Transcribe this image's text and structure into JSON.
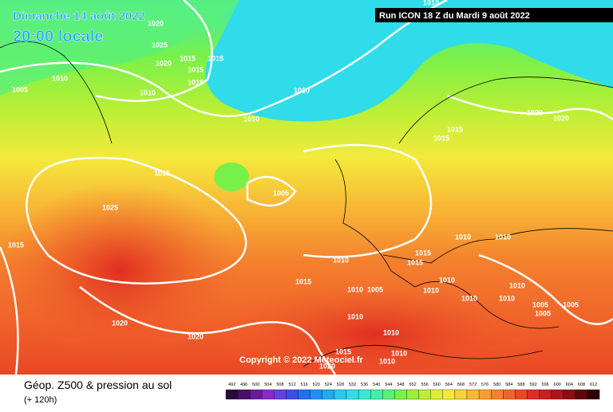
{
  "header": {
    "date": "Dimanche 14 août 2022",
    "time": "20:00 locale",
    "run": "Run ICON 18 Z du Mardi 9 août 2022"
  },
  "copyright": "Copyright © 2022 Meteociel.fr",
  "footer": {
    "title": "Géop. Z500 & pression au sol",
    "lead": "(+ 120h)"
  },
  "legend": {
    "values": [
      492,
      496,
      500,
      504,
      508,
      512,
      516,
      520,
      524,
      528,
      532,
      536,
      540,
      544,
      548,
      552,
      556,
      560,
      564,
      568,
      572,
      576,
      580,
      584,
      588,
      592,
      596,
      600,
      604,
      608,
      612
    ],
    "colors": [
      "#2a0a3a",
      "#4a0f6b",
      "#6a1a9a",
      "#8a2ac8",
      "#6a3fe0",
      "#3a4fe8",
      "#1f6ff0",
      "#1f8ff5",
      "#22aaf0",
      "#2ac8ee",
      "#30dcea",
      "#3ae8d0",
      "#46eca8",
      "#5af07a",
      "#78f04a",
      "#9af03a",
      "#bcef34",
      "#dcee38",
      "#f4ea3c",
      "#f8d23a",
      "#f8b836",
      "#f79c32",
      "#f4802e",
      "#f0642a",
      "#ea4826",
      "#e02e22",
      "#cc1e1e",
      "#b0141a",
      "#8c0c14",
      "#60060c",
      "#300206"
    ]
  },
  "isobars": [
    "1020",
    "1025",
    "1020",
    "1015",
    "1015",
    "1015",
    "1015",
    "1010",
    "1005",
    "1010",
    "1010",
    "1010",
    "1015",
    "1015",
    "1020",
    "1020",
    "1015",
    "1005",
    "1025",
    "1015",
    "1010",
    "1015",
    "1015",
    "1010",
    "1010",
    "1015",
    "1010",
    "1005",
    "1010",
    "1010",
    "1010",
    "1010",
    "1010",
    "1005",
    "1005",
    "1005",
    "1020",
    "1020",
    "1010",
    "1010",
    "1010",
    "1010",
    "1015",
    "1020",
    "1010"
  ]
}
